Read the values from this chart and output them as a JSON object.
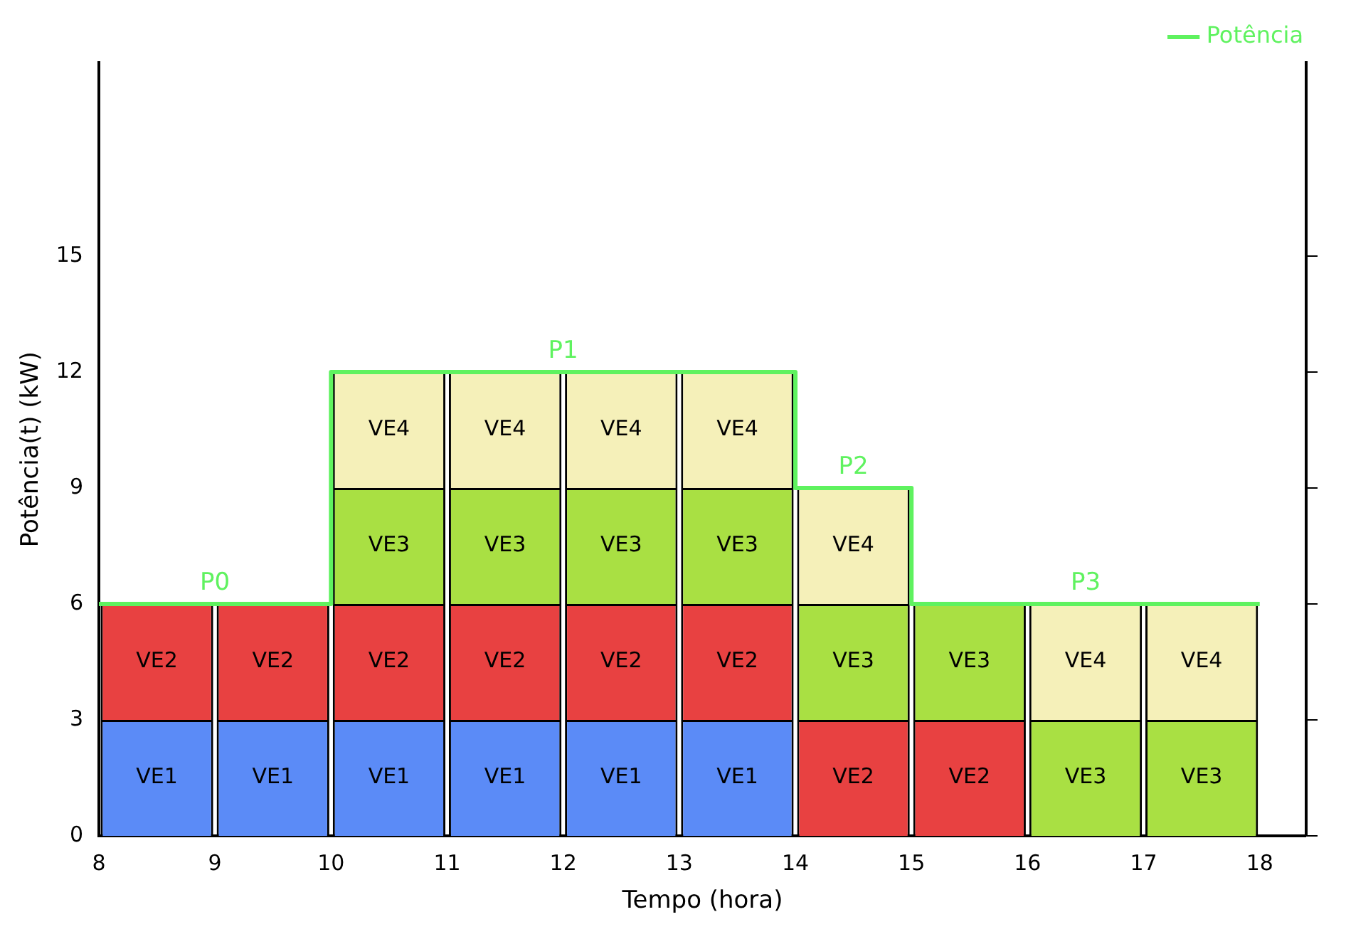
{
  "chart_data": {
    "type": "bar",
    "stacked": true,
    "xlabel": "Tempo (hora)",
    "ylabel": "Potência(t) (kW)",
    "x": [
      8.5,
      9.5,
      10.5,
      11.5,
      12.5,
      13.5,
      14.5,
      15.5,
      16.5,
      17.5
    ],
    "series": [
      {
        "name": "VE1",
        "color": "#5b8bf7",
        "values": [
          3,
          3,
          3,
          3,
          3,
          3,
          null,
          null,
          null,
          null
        ]
      },
      {
        "name": "VE2",
        "color": "#e84141",
        "values": [
          3,
          3,
          3,
          3,
          3,
          3,
          3,
          3,
          null,
          null
        ]
      },
      {
        "name": "VE3",
        "color": "#a9e043",
        "values": [
          null,
          null,
          3,
          3,
          3,
          3,
          3,
          3,
          3,
          3
        ]
      },
      {
        "name": "VE4",
        "color": "#f5f0b9",
        "values": [
          null,
          null,
          3,
          3,
          3,
          3,
          3,
          null,
          3,
          3
        ]
      },
      {
        "name": "Potência",
        "type": "step",
        "color": "#5ff25f",
        "x": [
          8,
          10,
          14,
          15,
          18
        ],
        "values": [
          6,
          12,
          9,
          6,
          6
        ]
      }
    ],
    "annotations": [
      {
        "text": "P0",
        "x": 9,
        "y": 6
      },
      {
        "text": "P1",
        "x": 12,
        "y": 12
      },
      {
        "text": "P2",
        "x": 14.5,
        "y": 9
      },
      {
        "text": "P3",
        "x": 16.5,
        "y": 6
      }
    ],
    "xlim": [
      8,
      18.4
    ],
    "xticks": [
      8,
      9,
      10,
      11,
      12,
      13,
      14,
      15,
      16,
      17,
      18
    ],
    "ylim": [
      0,
      20
    ],
    "yticks": [
      0,
      3,
      6,
      9,
      12,
      15
    ],
    "grid": false,
    "legend": "top right"
  }
}
